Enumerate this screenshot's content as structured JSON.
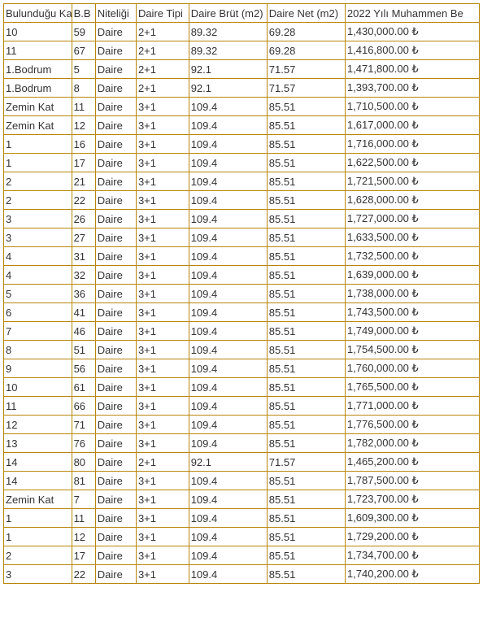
{
  "table": {
    "border_color": "#b8860b",
    "background_color": "#ffffff",
    "text_color": "#333333",
    "font_size": 13,
    "columns": [
      "Bulunduğu Kat",
      "B.B",
      "Niteliği",
      "Daire Tipi",
      "Daire Brüt (m2)",
      "Daire Net (m2)",
      "2022 Yılı Muhammen Be"
    ],
    "rows": [
      [
        "10",
        "59",
        "Daire",
        "2+1",
        "89.32",
        "69.28",
        "1,430,000.00 ₺"
      ],
      [
        "11",
        "67",
        "Daire",
        "2+1",
        "89.32",
        "69.28",
        "1,416,800.00 ₺"
      ],
      [
        "1.Bodrum",
        "5",
        "Daire",
        "2+1",
        "92.1",
        "71.57",
        "1,471,800.00 ₺"
      ],
      [
        "1.Bodrum",
        "8",
        "Daire",
        "2+1",
        "92.1",
        "71.57",
        "1,393,700.00 ₺"
      ],
      [
        "Zemin Kat",
        "11",
        "Daire",
        "3+1",
        "109.4",
        "85.51",
        "1,710,500.00 ₺"
      ],
      [
        "Zemin Kat",
        "12",
        "Daire",
        "3+1",
        "109.4",
        "85.51",
        "1,617,000.00 ₺"
      ],
      [
        "1",
        "16",
        "Daire",
        "3+1",
        "109.4",
        "85.51",
        "1,716,000.00 ₺"
      ],
      [
        "1",
        "17",
        "Daire",
        "3+1",
        "109.4",
        "85.51",
        "1,622,500.00 ₺"
      ],
      [
        "2",
        "21",
        "Daire",
        "3+1",
        "109.4",
        "85.51",
        "1,721,500.00 ₺"
      ],
      [
        "2",
        "22",
        "Daire",
        "3+1",
        "109.4",
        "85.51",
        "1,628,000.00 ₺"
      ],
      [
        "3",
        "26",
        "Daire",
        "3+1",
        "109.4",
        "85.51",
        "1,727,000.00 ₺"
      ],
      [
        "3",
        "27",
        "Daire",
        "3+1",
        "109.4",
        "85.51",
        "1,633,500.00 ₺"
      ],
      [
        "4",
        "31",
        "Daire",
        "3+1",
        "109.4",
        "85.51",
        "1,732,500.00 ₺"
      ],
      [
        "4",
        "32",
        "Daire",
        "3+1",
        "109.4",
        "85.51",
        "1,639,000.00 ₺"
      ],
      [
        "5",
        "36",
        "Daire",
        "3+1",
        "109.4",
        "85.51",
        "1,738,000.00 ₺"
      ],
      [
        "6",
        "41",
        "Daire",
        "3+1",
        "109.4",
        "85.51",
        "1,743,500.00 ₺"
      ],
      [
        "7",
        "46",
        "Daire",
        "3+1",
        "109.4",
        "85.51",
        "1,749,000.00 ₺"
      ],
      [
        "8",
        "51",
        "Daire",
        "3+1",
        "109.4",
        "85.51",
        "1,754,500.00 ₺"
      ],
      [
        "9",
        "56",
        "Daire",
        "3+1",
        "109.4",
        "85.51",
        "1,760,000.00 ₺"
      ],
      [
        "10",
        "61",
        "Daire",
        "3+1",
        "109.4",
        "85.51",
        "1,765,500.00 ₺"
      ],
      [
        "11",
        "66",
        "Daire",
        "3+1",
        "109.4",
        "85.51",
        "1,771,000.00 ₺"
      ],
      [
        "12",
        "71",
        "Daire",
        "3+1",
        "109.4",
        "85.51",
        "1,776,500.00 ₺"
      ],
      [
        "13",
        "76",
        "Daire",
        "3+1",
        "109.4",
        "85.51",
        "1,782,000.00 ₺"
      ],
      [
        "14",
        "80",
        "Daire",
        "2+1",
        "92.1",
        "71.57",
        "1,465,200.00 ₺"
      ],
      [
        "14",
        "81",
        "Daire",
        "3+1",
        "109.4",
        "85.51",
        "1,787,500.00 ₺"
      ],
      [
        "Zemin Kat",
        "7",
        "Daire",
        "3+1",
        "109.4",
        "85.51",
        "1,723,700.00 ₺"
      ],
      [
        "1",
        "11",
        "Daire",
        "3+1",
        "109.4",
        "85.51",
        "1,609,300.00 ₺"
      ],
      [
        "1",
        "12",
        "Daire",
        "3+1",
        "109.4",
        "85.51",
        "1,729,200.00 ₺"
      ],
      [
        "2",
        "17",
        "Daire",
        "3+1",
        "109.4",
        "85.51",
        "1,734,700.00 ₺"
      ],
      [
        "3",
        "22",
        "Daire",
        "3+1",
        "109.4",
        "85.51",
        "1,740,200.00 ₺"
      ]
    ]
  }
}
